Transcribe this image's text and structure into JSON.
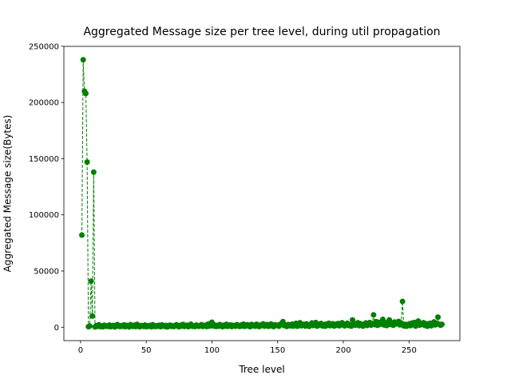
{
  "chart_data": {
    "type": "line",
    "title": "Aggregated Message size per tree level, during util propagation",
    "xlabel": "Tree level",
    "ylabel": "Aggregated Message size(Bytes)",
    "color": "#008000",
    "linestyle": "dashed",
    "marker": "o",
    "xlim": [
      -12.7,
      288.7
    ],
    "ylim": [
      -11900,
      249900
    ],
    "xticks": [
      0,
      50,
      100,
      150,
      200,
      250
    ],
    "yticks": [
      0,
      50000,
      100000,
      150000,
      200000,
      250000
    ],
    "x": [
      1,
      2,
      3,
      4,
      5,
      6,
      7,
      8,
      9,
      10,
      11,
      12,
      13,
      14,
      15,
      16,
      17,
      18,
      19,
      20,
      21,
      22,
      23,
      24,
      25,
      26,
      27,
      28,
      29,
      30,
      31,
      32,
      33,
      34,
      35,
      36,
      37,
      38,
      39,
      40,
      41,
      42,
      43,
      44,
      45,
      46,
      47,
      48,
      49,
      50,
      51,
      52,
      53,
      54,
      55,
      56,
      57,
      58,
      59,
      60,
      61,
      62,
      63,
      64,
      65,
      66,
      67,
      68,
      69,
      70,
      71,
      72,
      73,
      74,
      75,
      76,
      77,
      78,
      79,
      80,
      81,
      82,
      83,
      84,
      85,
      86,
      87,
      88,
      89,
      90,
      91,
      92,
      93,
      94,
      95,
      96,
      97,
      98,
      99,
      100,
      101,
      102,
      103,
      104,
      105,
      106,
      107,
      108,
      109,
      110,
      111,
      112,
      113,
      114,
      115,
      116,
      117,
      118,
      119,
      120,
      121,
      122,
      123,
      124,
      125,
      126,
      127,
      128,
      129,
      130,
      131,
      132,
      133,
      134,
      135,
      136,
      137,
      138,
      139,
      140,
      141,
      142,
      143,
      144,
      145,
      146,
      147,
      148,
      149,
      150,
      151,
      152,
      153,
      154,
      155,
      156,
      157,
      158,
      159,
      160,
      161,
      162,
      163,
      164,
      165,
      166,
      167,
      168,
      169,
      170,
      171,
      172,
      173,
      174,
      175,
      176,
      177,
      178,
      179,
      180,
      181,
      182,
      183,
      184,
      185,
      186,
      187,
      188,
      189,
      190,
      191,
      192,
      193,
      194,
      195,
      196,
      197,
      198,
      199,
      200,
      201,
      202,
      203,
      204,
      205,
      206,
      207,
      208,
      209,
      210,
      211,
      212,
      213,
      214,
      215,
      216,
      217,
      218,
      219,
      220,
      221,
      222,
      223,
      224,
      225,
      226,
      227,
      228,
      229,
      230,
      231,
      232,
      233,
      234,
      235,
      236,
      237,
      238,
      239,
      240,
      241,
      242,
      243,
      244,
      245,
      246,
      247,
      248,
      249,
      250,
      251,
      252,
      253,
      254,
      255,
      256,
      257,
      258,
      259,
      260,
      261,
      262,
      263,
      264,
      265,
      266,
      267,
      268,
      269,
      270,
      271,
      272,
      273,
      274,
      275
    ],
    "values": [
      82000,
      238000,
      210000,
      208000,
      147000,
      500,
      1000,
      41000,
      10000,
      138000,
      300,
      1500,
      800,
      2200,
      600,
      1100,
      400,
      1800,
      900,
      1300,
      700,
      2000,
      500,
      1200,
      1600,
      300,
      900,
      2400,
      1000,
      600,
      1400,
      800,
      2100,
      500,
      1700,
      1000,
      300,
      2300,
      1200,
      700,
      1900,
      600,
      2600,
      900,
      400,
      1500,
      1100,
      700,
      2000,
      500,
      1300,
      800,
      1700,
      400,
      2200,
      1000,
      600,
      1400,
      900,
      1800,
      500,
      2100,
      1200,
      700,
      1600,
      300,
      1000,
      1900,
      800,
      1300,
      600,
      1500,
      2200,
      900,
      400,
      1700,
      1100,
      2500,
      700,
      1200,
      1800,
      500,
      1400,
      2700,
      900,
      1000,
      600,
      2000,
      1300,
      800,
      1500,
      2300,
      700,
      1200,
      1900,
      600,
      2800,
      1000,
      3500,
      4500,
      1100,
      2000,
      700,
      1600,
      900,
      2400,
      1300,
      500,
      1800,
      1000,
      2600,
      800,
      1400,
      2100,
      600,
      1700,
      1200,
      900,
      2300,
      1500,
      700,
      1900,
      1100,
      2800,
      800,
      1600,
      2200,
      1000,
      500,
      2500,
      1300,
      1800,
      900,
      2700,
      1200,
      600,
      2000,
      1500,
      3000,
      1000,
      1700,
      2400,
      800,
      1300,
      2900,
      1100,
      600,
      2200,
      1600,
      1900,
      900,
      2600,
      3200,
      5000,
      1400,
      2000,
      700,
      2400,
      1800,
      1200,
      2800,
      1000,
      1600,
      3500,
      900,
      2200,
      4000,
      1300,
      1900,
      2600,
      1100,
      3000,
      1700,
      800,
      2400,
      3800,
      1500,
      2100,
      4200,
      1000,
      2700,
      1800,
      3400,
      1200,
      2300,
      900,
      2900,
      1600,
      3600,
      1400,
      2000,
      3100,
      1100,
      2600,
      1700,
      3300,
      1300,
      2500,
      4000,
      1900,
      1200,
      2800,
      3600,
      1500,
      2200,
      1000,
      6500,
      3000,
      1800,
      2500,
      4000,
      1400,
      3200,
      2100,
      1000,
      2700,
      3800,
      1600,
      2400,
      4200,
      1900,
      3000,
      11000,
      2300,
      5000,
      1700,
      4400,
      2600,
      3300,
      7000,
      2000,
      4100,
      1500,
      3500,
      6500,
      2400,
      3900,
      1800,
      4600,
      2900,
      3300,
      5200,
      2100,
      3800,
      23000,
      1200,
      2600,
      900,
      1800,
      3000,
      1400,
      3700,
      2200,
      4300,
      1000,
      2700,
      5500,
      1900,
      3400,
      2500,
      4000,
      1600,
      3100,
      900,
      2400,
      3600,
      1300,
      2800,
      4700,
      2100,
      3300,
      9000,
      2500,
      1800,
      2600
    ]
  }
}
